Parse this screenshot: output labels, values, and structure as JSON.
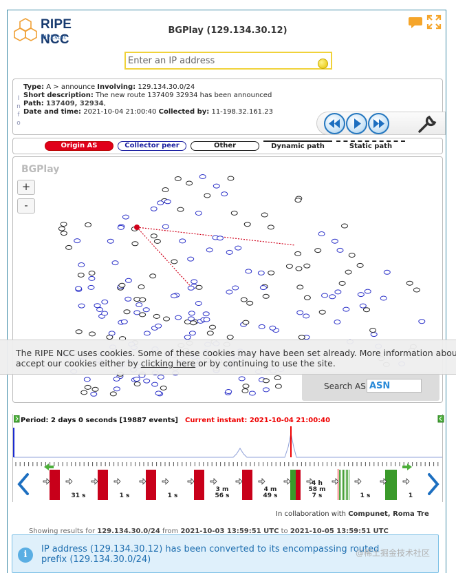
{
  "header": {
    "logo_title": "RIPE NCC",
    "logo_subtitle": "RIPEstat",
    "title": "BGPlay (129.134.30.12)"
  },
  "search": {
    "placeholder": "Enter an IP address",
    "value": ""
  },
  "info": {
    "vertical_label": [
      "I",
      "n",
      "f",
      "o"
    ],
    "type_label": "Type:",
    "type_value": "A > announce",
    "involving_label": "Involving:",
    "involving_value": "129.134.30.0/24",
    "short_label": "Short description:",
    "short_value": "The new route 137409 32934 has been announced",
    "path_label": "Path:",
    "path_value": "137409, 32934",
    "path_suffix": ",",
    "datetime_label": "Date and time:",
    "datetime_value": "2021-10-04 21:00:40",
    "collected_label": "Collected by:",
    "collected_value": "11-198.32.161.23"
  },
  "legend": {
    "origin_as": "Origin AS",
    "collector_peer": "Collector peer",
    "other": "Other",
    "dynamic_path": "Dynamic path",
    "static_path": "Static path"
  },
  "graph": {
    "watermark": "BGPlay",
    "zoom_in": "+",
    "zoom_out": "-",
    "search_label": "Search AS:",
    "search_value": "ASN"
  },
  "cookie": {
    "line1": "The RIPE NCC uses cookies. Some of these cookies may have been set already. More information about our cookies can be found in our privacy policy. You can",
    "line2_pre": "accept our cookies either by ",
    "link": "clicking here",
    "line2_post": " or by continuing to use the site."
  },
  "timeline": {
    "period": "Period: 2 days 0 seconds [19887 events]",
    "instant": "Current instant: 2021-10-04 21:00:40",
    "gaps": [
      "31 s",
      "1 s",
      "1 s",
      "3 m\n56 s",
      "4 m\n49 s",
      "4 h\n58 m\n7 s",
      "1 s",
      "1"
    ]
  },
  "footer": {
    "collab_pre": "In collaboration with ",
    "collab_bold": "Compunet, Roma Tre",
    "results_pre": "Showing results for ",
    "results_prefix": "129.134.30.0/24",
    "results_from": " from ",
    "results_start": "2021-10-03 13:59:51 UTC",
    "results_to": " to ",
    "results_end": "2021-10-05 13:59:51 UTC"
  },
  "notice": {
    "text": "IP address (129.134.30.12) has been converted to its encompassing routed prefix (129.134.30.0/24)"
  },
  "watermark": "@稀土掘金技术社区",
  "colors": {
    "accent_blue": "#2477bf",
    "origin_red": "#e0001a",
    "event_red": "#c8001a",
    "event_green": "#3a9a2a",
    "notice_bg": "#dff0fb"
  }
}
